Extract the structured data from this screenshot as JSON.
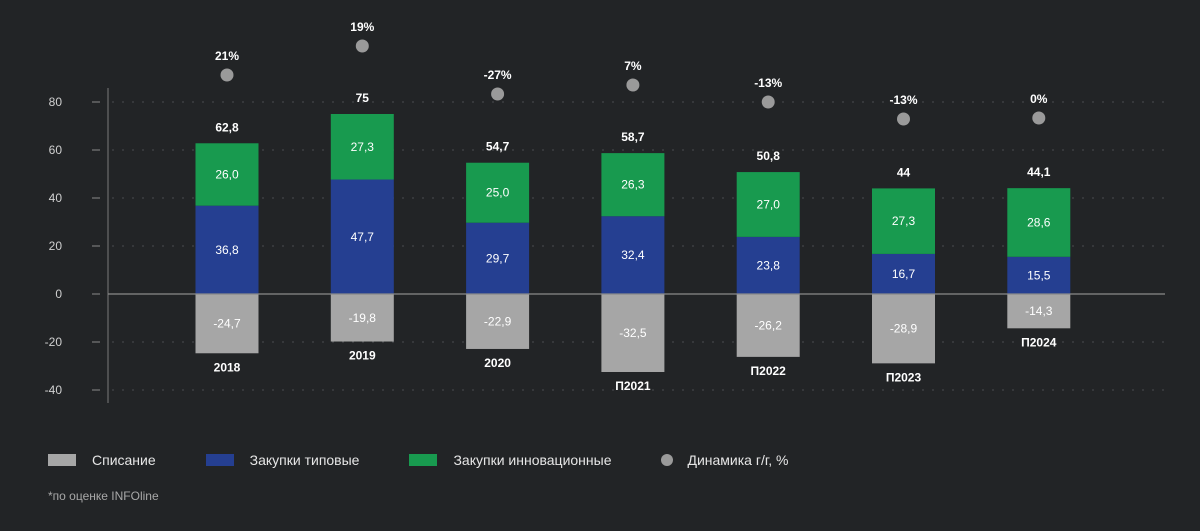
{
  "chart_data": {
    "type": "bar",
    "stacked": true,
    "categories": [
      "2018",
      "2019",
      "2020",
      "П2021",
      "П2022",
      "П2023",
      "П2024"
    ],
    "series": [
      {
        "name": "Списание",
        "color": "#a6a6a6",
        "values": [
          -24.7,
          -19.8,
          -22.9,
          -32.5,
          -26.2,
          -28.9,
          -14.3
        ],
        "labels": [
          "-24,7",
          "-19,8",
          "-22,9",
          "-32,5",
          "-26,2",
          "-28,9",
          "-14,3"
        ]
      },
      {
        "name": "Закупки типовые",
        "color": "#253f91",
        "values": [
          36.8,
          47.7,
          29.7,
          32.4,
          23.8,
          16.7,
          15.5
        ],
        "labels": [
          "36,8",
          "47,7",
          "29,7",
          "32,4",
          "23,8",
          "16,7",
          "15,5"
        ]
      },
      {
        "name": "Закупки инновационные",
        "color": "#189a4f",
        "values": [
          26.0,
          27.3,
          25.0,
          26.3,
          27.0,
          27.3,
          28.6
        ],
        "labels": [
          "26,0",
          "27,3",
          "25,0",
          "26,3",
          "27,0",
          "27,3",
          "28,6"
        ]
      }
    ],
    "totals": [
      "62,8",
      "75",
      "54,7",
      "58,7",
      "50,8",
      "44",
      "44,1"
    ],
    "dynamics": {
      "name": "Динамика г/г, %",
      "color": "#9a9a9a",
      "labels": [
        "21%",
        "19%",
        "-27%",
        "7%",
        "-13%",
        "-13%",
        "0%"
      ]
    },
    "yticks": [
      80,
      60,
      40,
      20,
      0,
      -20,
      -40
    ],
    "ylim": [
      -40,
      80
    ],
    "grid": "dotted horizontal",
    "legend_position": "bottom"
  },
  "footnote": "*по оценке INFOline"
}
